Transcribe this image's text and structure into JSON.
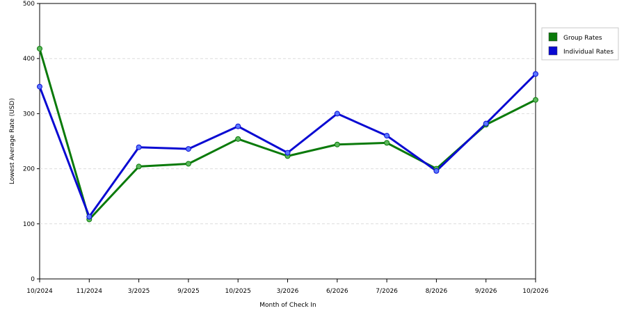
{
  "chart_data": {
    "type": "line",
    "categories": [
      "10/2024",
      "11/2024",
      "3/2025",
      "9/2025",
      "10/2025",
      "3/2026",
      "6/2026",
      "7/2026",
      "8/2026",
      "9/2026",
      "10/2026"
    ],
    "series": [
      {
        "name": "Group Rates",
        "color": "#0a7a0a",
        "values": [
          418,
          108,
          204,
          209,
          254,
          223,
          244,
          247,
          200,
          280,
          325
        ]
      },
      {
        "name": "Individual Rates",
        "color": "#0a0ad2",
        "values": [
          349,
          113,
          239,
          236,
          277,
          229,
          300,
          260,
          196,
          282,
          372
        ]
      }
    ],
    "xlabel": "Month of Check In",
    "ylabel": "Lowest Average Rate (USD)",
    "ylim": [
      0,
      500
    ],
    "yticks": [
      0,
      100,
      200,
      300,
      400,
      500
    ],
    "grid": true,
    "legend_position": "right"
  }
}
